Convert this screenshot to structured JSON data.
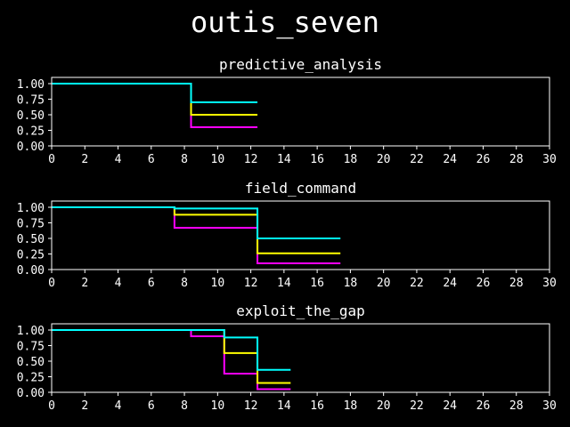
{
  "figure": {
    "title": "outis_seven"
  },
  "colors": {
    "background": "#000000",
    "axes": "#ffffff",
    "text": "#ffffff"
  },
  "chart_data": [
    {
      "type": "line",
      "step": "post",
      "title": "predictive_analysis",
      "xlim": [
        0,
        30
      ],
      "ylim": [
        0,
        1.1
      ],
      "xticks": [
        0,
        2,
        4,
        6,
        8,
        10,
        12,
        14,
        16,
        18,
        20,
        22,
        24,
        26,
        28,
        30
      ],
      "xticklabels": [
        "0",
        "2",
        "4",
        "6",
        "8",
        "10",
        "12",
        "14",
        "16",
        "18",
        "20",
        "22",
        "24",
        "26",
        "28",
        "30"
      ],
      "yticks": [
        0,
        0.25,
        0.5,
        0.75,
        1.0
      ],
      "yticklabels": [
        "0.00",
        "0.25",
        "0.50",
        "0.75",
        "1.00"
      ],
      "grid": false,
      "series": [
        {
          "color": "#ff00ff",
          "x": [
            0,
            8.4,
            12.4
          ],
          "y": [
            1.0,
            0.3,
            0.3
          ]
        },
        {
          "color": "#ffff00",
          "x": [
            0,
            8.4,
            12.4
          ],
          "y": [
            1.0,
            0.5,
            0.5
          ]
        },
        {
          "color": "#00ffff",
          "x": [
            0,
            8.4,
            12.4
          ],
          "y": [
            1.0,
            0.7,
            0.7
          ]
        }
      ]
    },
    {
      "type": "line",
      "step": "post",
      "title": "field_command",
      "xlim": [
        0,
        30
      ],
      "ylim": [
        0,
        1.1
      ],
      "xticks": [
        0,
        2,
        4,
        6,
        8,
        10,
        12,
        14,
        16,
        18,
        20,
        22,
        24,
        26,
        28,
        30
      ],
      "xticklabels": [
        "0",
        "2",
        "4",
        "6",
        "8",
        "10",
        "12",
        "14",
        "16",
        "18",
        "20",
        "22",
        "24",
        "26",
        "28",
        "30"
      ],
      "yticks": [
        0,
        0.25,
        0.5,
        0.75,
        1.0
      ],
      "yticklabels": [
        "0.00",
        "0.25",
        "0.50",
        "0.75",
        "1.00"
      ],
      "grid": false,
      "series": [
        {
          "color": "#ff00ff",
          "x": [
            0,
            7.4,
            12.4,
            17.4
          ],
          "y": [
            1.0,
            0.67,
            0.1,
            0.1
          ]
        },
        {
          "color": "#ffff00",
          "x": [
            0,
            7.4,
            12.4,
            17.4
          ],
          "y": [
            1.0,
            0.88,
            0.26,
            0.26
          ]
        },
        {
          "color": "#00ffff",
          "x": [
            0,
            7.4,
            12.4,
            17.4
          ],
          "y": [
            1.0,
            0.98,
            0.5,
            0.5
          ]
        }
      ]
    },
    {
      "type": "line",
      "step": "post",
      "title": "exploit_the_gap",
      "xlim": [
        0,
        30
      ],
      "ylim": [
        0,
        1.1
      ],
      "xticks": [
        0,
        2,
        4,
        6,
        8,
        10,
        12,
        14,
        16,
        18,
        20,
        22,
        24,
        26,
        28,
        30
      ],
      "xticklabels": [
        "0",
        "2",
        "4",
        "6",
        "8",
        "10",
        "12",
        "14",
        "16",
        "18",
        "20",
        "22",
        "24",
        "26",
        "28",
        "30"
      ],
      "yticks": [
        0,
        0.25,
        0.5,
        0.75,
        1.0
      ],
      "yticklabels": [
        "0.00",
        "0.25",
        "0.50",
        "0.75",
        "1.00"
      ],
      "grid": false,
      "series": [
        {
          "color": "#ff00ff",
          "x": [
            0,
            8.4,
            10.4,
            12.4,
            14.4
          ],
          "y": [
            1.0,
            0.9,
            0.3,
            0.05,
            0.05
          ]
        },
        {
          "color": "#ffff00",
          "x": [
            0,
            10.4,
            12.4,
            14.4
          ],
          "y": [
            1.0,
            0.63,
            0.15,
            0.15
          ]
        },
        {
          "color": "#00ffff",
          "x": [
            0,
            10.4,
            12.4,
            14.4
          ],
          "y": [
            1.0,
            0.88,
            0.36,
            0.36
          ]
        }
      ]
    }
  ]
}
